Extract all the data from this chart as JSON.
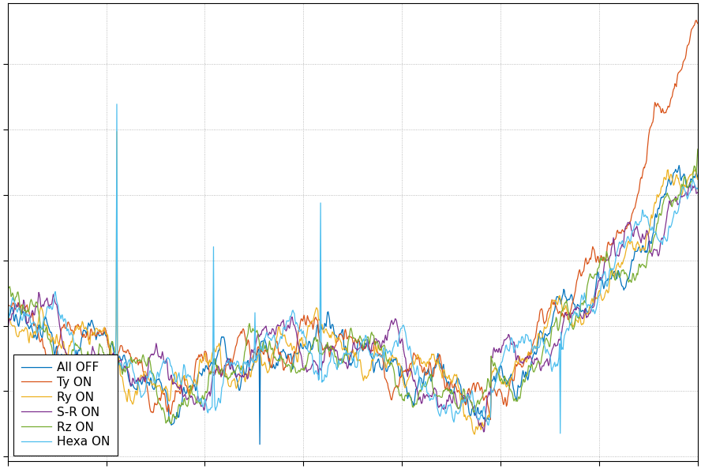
{
  "title": "",
  "xlabel": "",
  "ylabel": "",
  "background_color": "#ffffff",
  "grid_color": "#aaaaaa",
  "colors": {
    "All OFF": "#0072bd",
    "Ty ON": "#d95319",
    "Ry ON": "#edb120",
    "S-R ON": "#7e2f8e",
    "Rz ON": "#77ac30",
    "Hexa ON": "#4dbeee"
  },
  "legend_labels": [
    "All OFF",
    "Ty ON",
    "Ry ON",
    "S-R ON",
    "Rz ON",
    "Hexa ON"
  ],
  "n_points": 1000,
  "seed": 42,
  "linewidth": 0.9,
  "legend_fontsize": 11,
  "legend_loc": "lower left"
}
